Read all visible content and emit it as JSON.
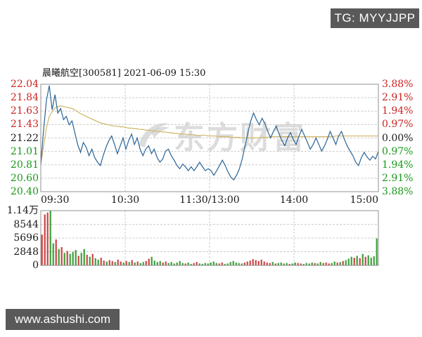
{
  "header": {
    "tg_badge": "TG: MYYJJPP"
  },
  "footer": {
    "site_badge": "www.ashushi.com"
  },
  "chart": {
    "title": "晨曦航空[300581] 2021-06-09 15:30",
    "stock_name": "晨曦航空",
    "stock_code": "300581",
    "datetime": "2021-06-09 15:30",
    "watermark": "东方财富"
  },
  "colors": {
    "up_red": "#cc2222",
    "down_green": "#189818",
    "neutral_black": "#1a1a1a",
    "price_line": "#2a6496",
    "avg_line": "#d2b464",
    "vol_up": "#cc4444",
    "vol_down": "#3aa03a",
    "grid": "#cccccc",
    "border": "#909090",
    "badge_bg": "#595959"
  },
  "chart_data": {
    "type": "line",
    "title": "晨曦航空[300581] 2021-06-09 15:30",
    "prev_close": 21.22,
    "ylim": [
      20.4,
      22.04
    ],
    "price_axis_labels": [
      "22.04",
      "21.84",
      "21.63",
      "21.43",
      "21.22",
      "21.01",
      "20.81",
      "20.60",
      "20.40"
    ],
    "percent_axis_labels": [
      "3.88%",
      "2.91%",
      "1.94%",
      "0.97%",
      "0.00%",
      "0.97%",
      "1.94%",
      "2.91%",
      "3.88%"
    ],
    "time_axis_labels": [
      "09:30",
      "10:30",
      "11:30/13:00",
      "14:00",
      "15:00"
    ],
    "series": [
      {
        "name": "price",
        "values": [
          20.82,
          21.35,
          21.8,
          22.02,
          21.65,
          21.88,
          21.6,
          21.67,
          21.5,
          21.55,
          21.42,
          21.48,
          21.3,
          21.12,
          21.0,
          21.15,
          21.08,
          20.95,
          21.05,
          20.92,
          20.85,
          20.8,
          20.95,
          21.08,
          21.18,
          21.25,
          21.12,
          20.98,
          21.1,
          21.22,
          21.05,
          21.18,
          21.28,
          21.12,
          21.22,
          21.05,
          20.95,
          21.05,
          21.1,
          20.98,
          21.05,
          20.92,
          20.85,
          20.9,
          21.02,
          21.05,
          20.95,
          20.88,
          20.8,
          20.75,
          20.82,
          20.78,
          20.72,
          20.78,
          20.72,
          20.78,
          20.85,
          20.78,
          20.72,
          20.75,
          20.72,
          20.65,
          20.72,
          20.8,
          20.88,
          20.8,
          20.7,
          20.62,
          20.58,
          20.65,
          20.75,
          20.9,
          21.1,
          21.3,
          21.48,
          21.6,
          21.5,
          21.42,
          21.52,
          21.44,
          21.32,
          21.22,
          21.32,
          21.4,
          21.28,
          21.18,
          21.1,
          21.22,
          21.3,
          21.2,
          21.12,
          21.25,
          21.35,
          21.25,
          21.15,
          21.05,
          21.12,
          21.22,
          21.12,
          21.02,
          21.1,
          21.2,
          21.32,
          21.22,
          21.12,
          21.25,
          21.32,
          21.2,
          21.1,
          21.02,
          20.95,
          20.85,
          20.8,
          20.92,
          21.0,
          20.93,
          20.88,
          20.94,
          20.9,
          21.02
        ]
      },
      {
        "name": "avg_price",
        "values": [
          20.82,
          21.1,
          21.38,
          21.55,
          21.62,
          21.68,
          21.7,
          21.71,
          21.7,
          21.69,
          21.68,
          21.67,
          21.65,
          21.62,
          21.59,
          21.57,
          21.55,
          21.53,
          21.51,
          21.49,
          21.47,
          21.45,
          21.44,
          21.43,
          21.42,
          21.41,
          21.4,
          21.4,
          21.39,
          21.39,
          21.38,
          21.37,
          21.37,
          21.36,
          21.36,
          21.35,
          21.35,
          21.34,
          21.34,
          21.33,
          21.33,
          21.32,
          21.32,
          21.31,
          21.31,
          21.3,
          21.3,
          21.29,
          21.29,
          21.28,
          21.28,
          21.28,
          21.27,
          21.27,
          21.27,
          21.26,
          21.26,
          21.26,
          21.26,
          21.25,
          21.25,
          21.25,
          21.25,
          21.24,
          21.24,
          21.24,
          21.24,
          21.23,
          21.23,
          21.23,
          21.23,
          21.22,
          21.22,
          21.22,
          21.22,
          21.22,
          21.22,
          21.22,
          21.23,
          21.23,
          21.23,
          21.24,
          21.24,
          21.24,
          21.24,
          21.24,
          21.24,
          21.24,
          21.24,
          21.24,
          21.24,
          21.24,
          21.24,
          21.24,
          21.24,
          21.24,
          21.24,
          21.24,
          21.24,
          21.24,
          21.24,
          21.24,
          21.24,
          21.24,
          21.25,
          21.25,
          21.25,
          21.25,
          21.25,
          21.25,
          21.25,
          21.25,
          21.25,
          21.25,
          21.25,
          21.25,
          21.25,
          21.25,
          21.25,
          21.25
        ]
      }
    ],
    "volume": {
      "axis_labels": [
        "1.14万",
        "8544",
        "5696",
        "2848",
        "0"
      ],
      "ymax": 11400,
      "values": [
        6400,
        10600,
        11000,
        11400,
        4600,
        5400,
        3400,
        3800,
        2600,
        3000,
        2400,
        2800,
        3200,
        2000,
        2600,
        3400,
        2200,
        1800,
        2400,
        1500,
        1200,
        1600,
        1000,
        800,
        1100,
        900,
        700,
        1200,
        800,
        600,
        900,
        700,
        1100,
        600,
        800,
        500,
        700,
        900,
        1400,
        1800,
        1000,
        700,
        900,
        600,
        800,
        500,
        700,
        400,
        600,
        900,
        500,
        400,
        600,
        300,
        500,
        700,
        400,
        300,
        500,
        400,
        600,
        800,
        500,
        400,
        600,
        300,
        400,
        700,
        900,
        600,
        500,
        400,
        600,
        800,
        1000,
        1300,
        1100,
        900,
        1200,
        800,
        600,
        500,
        700,
        400,
        500,
        600,
        400,
        500,
        300,
        400,
        600,
        500,
        400,
        300,
        500,
        400,
        600,
        500,
        400,
        700,
        500,
        600,
        400,
        500,
        800,
        600,
        700,
        900,
        1100,
        1400,
        1800,
        1600,
        2000,
        1500,
        2400,
        1800,
        2100,
        1600,
        1900,
        5600
      ],
      "colors": "rrrggrgrgrgggrggrgrggrrgrrgrrgrgrgrggrrggggrrgggggg rggrrgggggggrrgggggggrrrrrrrrrrgrggggrggrrggggrggrrrggrgrgggrgrgrggggr"
    }
  }
}
